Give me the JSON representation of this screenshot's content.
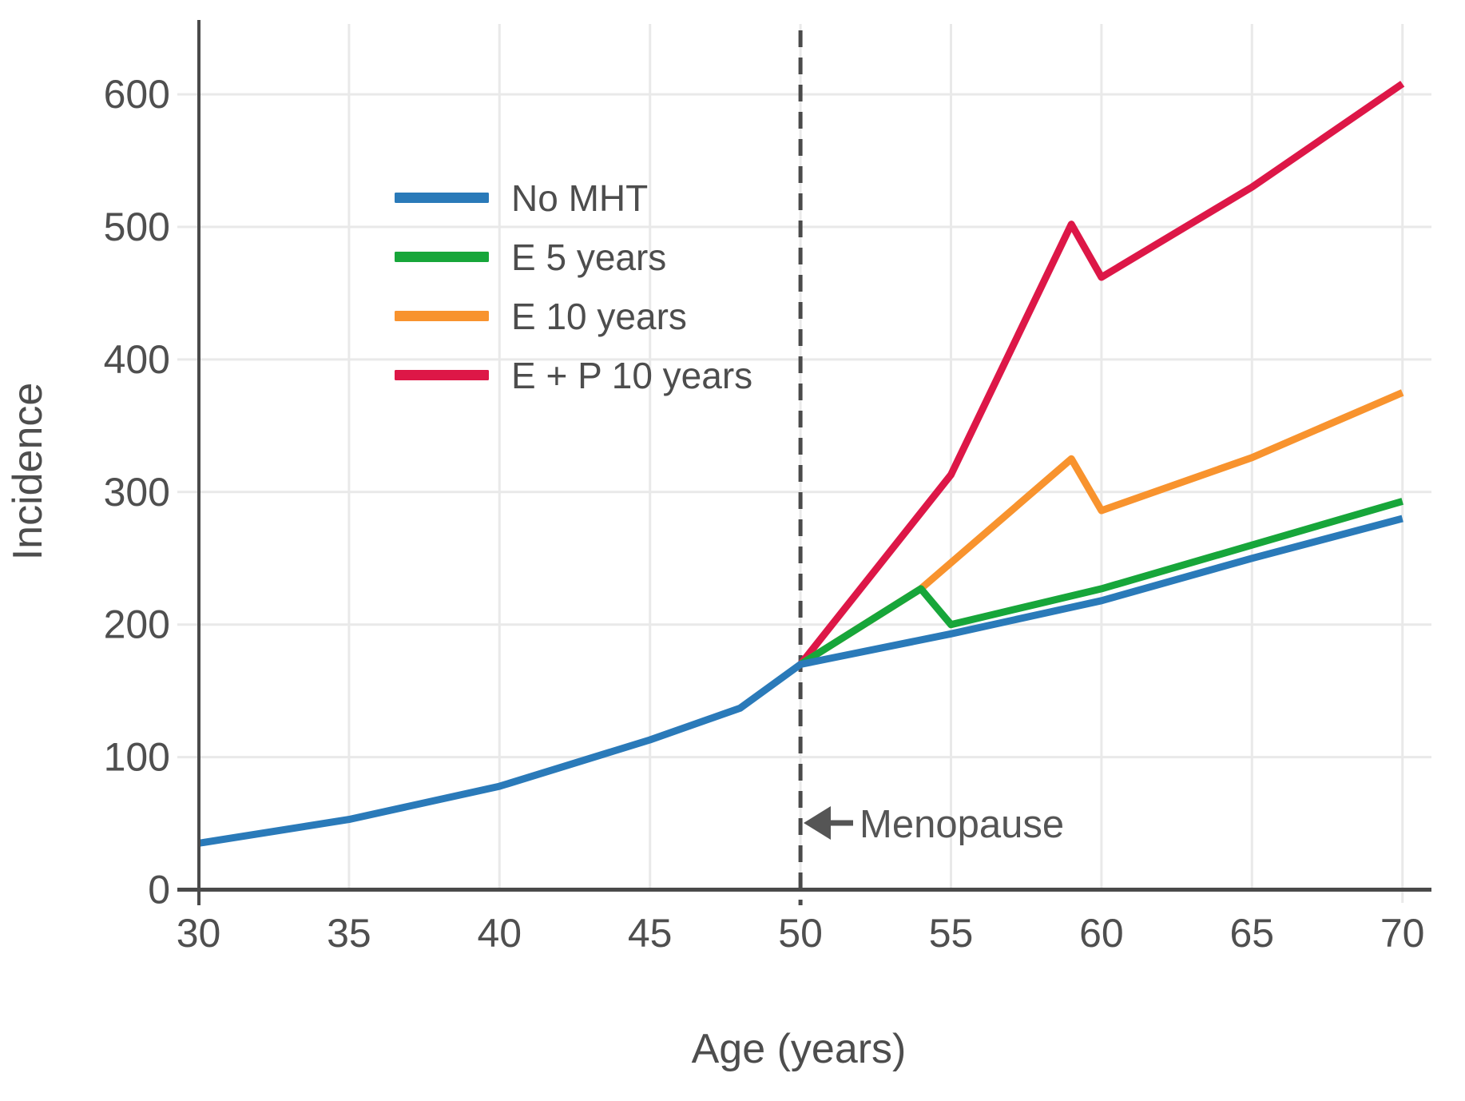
{
  "chart_data": {
    "type": "line",
    "title": "",
    "xlabel": "Age (years)",
    "ylabel": "Incidence",
    "xlim": [
      30,
      70
    ],
    "ylim": [
      0,
      620
    ],
    "xticks": [
      30,
      35,
      40,
      45,
      50,
      55,
      60,
      65,
      70
    ],
    "yticks": [
      0,
      100,
      200,
      300,
      400,
      500,
      600
    ],
    "grid": true,
    "legend_position": "upper-left-inside",
    "series": [
      {
        "name": "No MHT",
        "color": "#2a7ab9",
        "points": [
          [
            30,
            35
          ],
          [
            35,
            53
          ],
          [
            40,
            78
          ],
          [
            45,
            113
          ],
          [
            48,
            137
          ],
          [
            50,
            170
          ],
          [
            55,
            193
          ],
          [
            60,
            218
          ],
          [
            65,
            250
          ],
          [
            70,
            280
          ]
        ]
      },
      {
        "name": "E 5 years",
        "color": "#17a63a",
        "points": [
          [
            50,
            170
          ],
          [
            54,
            227
          ],
          [
            55,
            200
          ],
          [
            60,
            227
          ],
          [
            65,
            260
          ],
          [
            70,
            293
          ]
        ]
      },
      {
        "name": "E 10 years",
        "color": "#f8932e",
        "points": [
          [
            50,
            170
          ],
          [
            54,
            227
          ],
          [
            59,
            325
          ],
          [
            60,
            286
          ],
          [
            65,
            326
          ],
          [
            70,
            375
          ]
        ]
      },
      {
        "name": "E + P 10 years",
        "color": "#dd1747",
        "points": [
          [
            50,
            170
          ],
          [
            55,
            313
          ],
          [
            59,
            502
          ],
          [
            60,
            462
          ],
          [
            65,
            530
          ],
          [
            70,
            608
          ]
        ]
      }
    ],
    "reference_line": {
      "x": 50,
      "style": "dashed",
      "color": "#4a4a4a"
    },
    "annotation": {
      "text": "Menopause",
      "x": 50,
      "arrow": "left"
    },
    "colors": {
      "grid": "#e9e9e9",
      "axis": "#4a4a4a",
      "tick_text": "#4f4f4f",
      "label_text": "#4d4d4d",
      "background": "#ffffff"
    }
  }
}
